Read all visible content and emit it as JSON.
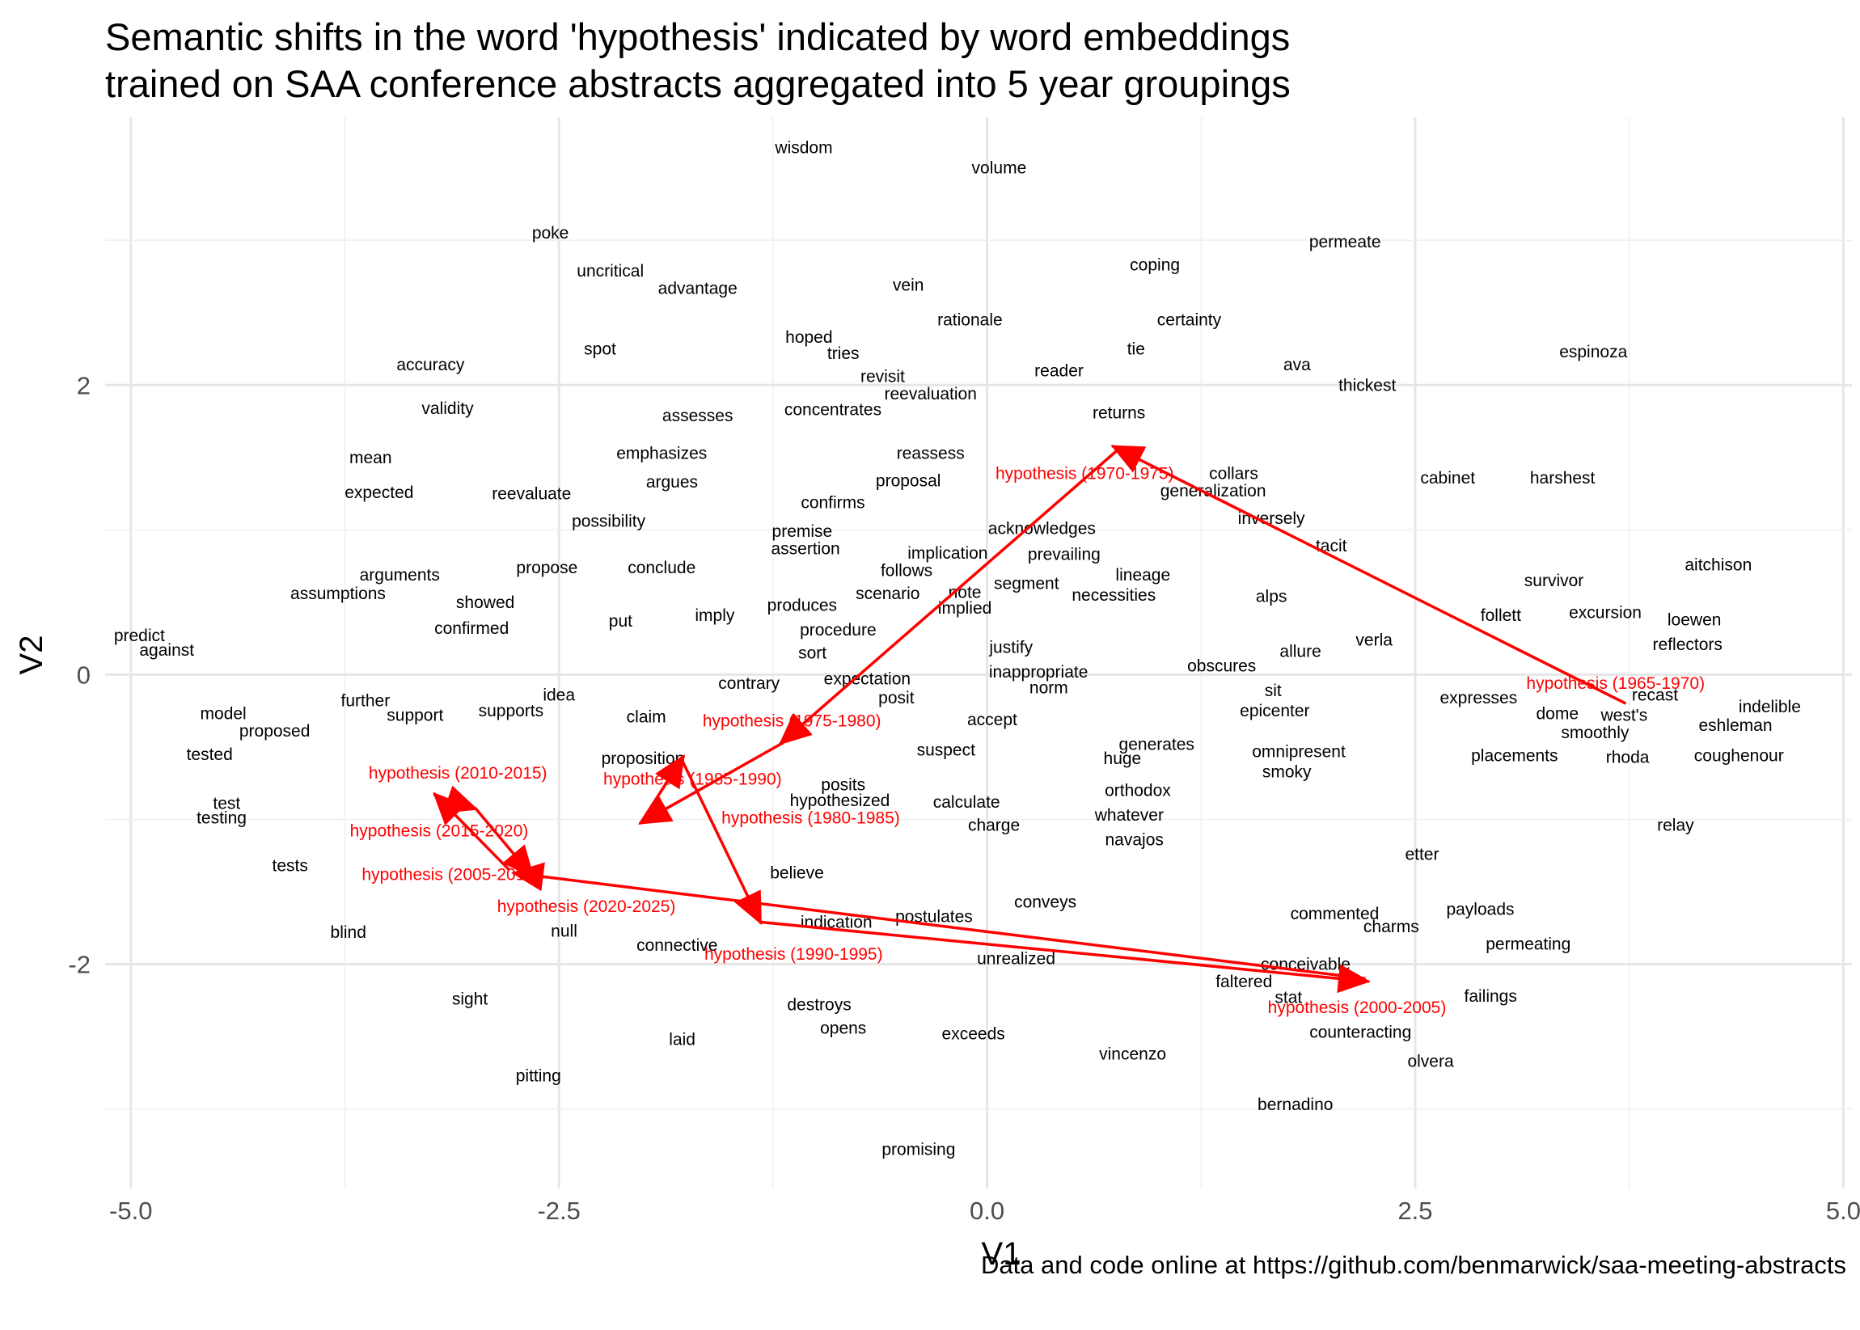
{
  "chart_data": {
    "type": "scatter",
    "title": "Semantic shifts in the word 'hypothesis' indicated by word embeddings\ntrained on SAA conference abstracts aggregated into 5 year groupings",
    "title_lines": [
      "Semantic shifts in the word 'hypothesis' indicated by word embeddings",
      "trained on SAA conference abstracts aggregated into 5 year groupings"
    ],
    "xlabel": "V1",
    "ylabel": "V2",
    "caption": "Data and code online at https://github.com/benmarwick/saa-meeting-abstracts",
    "xlim": [
      -5.15,
      5.05
    ],
    "ylim": [
      -3.55,
      3.85
    ],
    "x_ticks": [
      -5.0,
      -2.5,
      0.0,
      2.5,
      5.0
    ],
    "x_tick_labels": [
      "-5.0",
      "-2.5",
      "0.0",
      "2.5",
      "5.0"
    ],
    "y_ticks": [
      -2,
      0,
      2
    ],
    "y_tick_labels": [
      "-2",
      "0",
      "2"
    ],
    "grid": true,
    "colors": {
      "words": "#000000",
      "hypothesis": "#ff0000",
      "grid": "#e6e6e6"
    },
    "words": [
      {
        "label": "wisdom",
        "x": -1.07,
        "y": 3.64
      },
      {
        "label": "volume",
        "x": 0.07,
        "y": 3.5
      },
      {
        "label": "poke",
        "x": -2.55,
        "y": 3.05
      },
      {
        "label": "permeate",
        "x": 2.09,
        "y": 2.99
      },
      {
        "label": "coping",
        "x": 0.98,
        "y": 2.83
      },
      {
        "label": "uncritical",
        "x": -2.2,
        "y": 2.79
      },
      {
        "label": "advantage",
        "x": -1.69,
        "y": 2.67
      },
      {
        "label": "vein",
        "x": -0.46,
        "y": 2.69
      },
      {
        "label": "certainty",
        "x": 1.18,
        "y": 2.45
      },
      {
        "label": "rationale",
        "x": -0.1,
        "y": 2.45
      },
      {
        "label": "hoped",
        "x": -1.04,
        "y": 2.33
      },
      {
        "label": "tries",
        "x": -0.84,
        "y": 2.22
      },
      {
        "label": "spot",
        "x": -2.26,
        "y": 2.25
      },
      {
        "label": "tie",
        "x": 0.87,
        "y": 2.25
      },
      {
        "label": "espinoza",
        "x": 3.54,
        "y": 2.23
      },
      {
        "label": "ava",
        "x": 1.81,
        "y": 2.14
      },
      {
        "label": "accuracy",
        "x": -3.25,
        "y": 2.14
      },
      {
        "label": "reader",
        "x": 0.42,
        "y": 2.1
      },
      {
        "label": "revisit",
        "x": -0.61,
        "y": 2.06
      },
      {
        "label": "thickest",
        "x": 2.22,
        "y": 2.0
      },
      {
        "label": "reevaluation",
        "x": -0.33,
        "y": 1.94
      },
      {
        "label": "validity",
        "x": -3.15,
        "y": 1.84
      },
      {
        "label": "concentrates",
        "x": -0.9,
        "y": 1.83
      },
      {
        "label": "returns",
        "x": 0.77,
        "y": 1.81
      },
      {
        "label": "assesses",
        "x": -1.69,
        "y": 1.79
      },
      {
        "label": "mean",
        "x": -3.6,
        "y": 1.5
      },
      {
        "label": "emphasizes",
        "x": -1.9,
        "y": 1.53
      },
      {
        "label": "reassess",
        "x": -0.33,
        "y": 1.53
      },
      {
        "label": "collars",
        "x": 1.44,
        "y": 1.39
      },
      {
        "label": "cabinet",
        "x": 2.69,
        "y": 1.36
      },
      {
        "label": "harshest",
        "x": 3.36,
        "y": 1.36
      },
      {
        "label": "argues",
        "x": -1.84,
        "y": 1.33
      },
      {
        "label": "proposal",
        "x": -0.46,
        "y": 1.34
      },
      {
        "label": "generalization",
        "x": 1.32,
        "y": 1.27
      },
      {
        "label": "expected",
        "x": -3.55,
        "y": 1.26
      },
      {
        "label": "reevaluate",
        "x": -2.66,
        "y": 1.25
      },
      {
        "label": "confirms",
        "x": -0.9,
        "y": 1.19
      },
      {
        "label": "possibility",
        "x": -2.21,
        "y": 1.06
      },
      {
        "label": "inversely",
        "x": 1.66,
        "y": 1.08
      },
      {
        "label": "acknowledges",
        "x": 0.32,
        "y": 1.01
      },
      {
        "label": "premise",
        "x": -1.08,
        "y": 0.99
      },
      {
        "label": "assertion",
        "x": -1.06,
        "y": 0.87
      },
      {
        "label": "tacit",
        "x": 2.01,
        "y": 0.89
      },
      {
        "label": "implication",
        "x": -0.23,
        "y": 0.84
      },
      {
        "label": "prevailing",
        "x": 0.45,
        "y": 0.83
      },
      {
        "label": "aitchison",
        "x": 4.27,
        "y": 0.76
      },
      {
        "label": "follows",
        "x": -0.47,
        "y": 0.72
      },
      {
        "label": "conclude",
        "x": -1.9,
        "y": 0.74
      },
      {
        "label": "propose",
        "x": -2.57,
        "y": 0.74
      },
      {
        "label": "arguments",
        "x": -3.43,
        "y": 0.69
      },
      {
        "label": "lineage",
        "x": 0.91,
        "y": 0.69
      },
      {
        "label": "survivor",
        "x": 3.31,
        "y": 0.65
      },
      {
        "label": "segment",
        "x": 0.23,
        "y": 0.63
      },
      {
        "label": "assumptions",
        "x": -3.79,
        "y": 0.56
      },
      {
        "label": "scenario",
        "x": -0.58,
        "y": 0.56
      },
      {
        "label": "note",
        "x": -0.13,
        "y": 0.57
      },
      {
        "label": "necessities",
        "x": 0.74,
        "y": 0.55
      },
      {
        "label": "alps",
        "x": 1.66,
        "y": 0.54
      },
      {
        "label": "showed",
        "x": -2.93,
        "y": 0.5
      },
      {
        "label": "produces",
        "x": -1.08,
        "y": 0.48
      },
      {
        "label": "implied",
        "x": -0.13,
        "y": 0.46
      },
      {
        "label": "excursion",
        "x": 3.61,
        "y": 0.43
      },
      {
        "label": "follett",
        "x": 3.0,
        "y": 0.41
      },
      {
        "label": "loewen",
        "x": 4.13,
        "y": 0.38
      },
      {
        "label": "imply",
        "x": -1.59,
        "y": 0.41
      },
      {
        "label": "put",
        "x": -2.14,
        "y": 0.37
      },
      {
        "label": "confirmed",
        "x": -3.01,
        "y": 0.32
      },
      {
        "label": "procedure",
        "x": -0.87,
        "y": 0.31
      },
      {
        "label": "predict",
        "x": -4.95,
        "y": 0.27
      },
      {
        "label": "verla",
        "x": 2.26,
        "y": 0.24
      },
      {
        "label": "reflectors",
        "x": 4.09,
        "y": 0.21
      },
      {
        "label": "justify",
        "x": 0.14,
        "y": 0.19
      },
      {
        "label": "allure",
        "x": 1.83,
        "y": 0.16
      },
      {
        "label": "against",
        "x": -4.79,
        "y": 0.17
      },
      {
        "label": "sort",
        "x": -1.02,
        "y": 0.15
      },
      {
        "label": "obscures",
        "x": 1.37,
        "y": 0.06
      },
      {
        "label": "inappropriate",
        "x": 0.3,
        "y": 0.02
      },
      {
        "label": "expectation",
        "x": -0.7,
        "y": -0.03
      },
      {
        "label": "contrary",
        "x": -1.39,
        "y": -0.06
      },
      {
        "label": "norm",
        "x": 0.36,
        "y": -0.09
      },
      {
        "label": "sit",
        "x": 1.67,
        "y": -0.11
      },
      {
        "label": "idea",
        "x": -2.5,
        "y": -0.14
      },
      {
        "label": "expresses",
        "x": 2.87,
        "y": -0.16
      },
      {
        "label": "recast",
        "x": 3.9,
        "y": -0.14
      },
      {
        "label": "posit",
        "x": -0.53,
        "y": -0.16
      },
      {
        "label": "further",
        "x": -3.63,
        "y": -0.18
      },
      {
        "label": "indelible",
        "x": 4.57,
        "y": -0.22
      },
      {
        "label": "epicenter",
        "x": 1.68,
        "y": -0.25
      },
      {
        "label": "supports",
        "x": -2.78,
        "y": -0.25
      },
      {
        "label": "dome",
        "x": 3.33,
        "y": -0.27
      },
      {
        "label": "model",
        "x": -4.46,
        "y": -0.27
      },
      {
        "label": "support",
        "x": -3.34,
        "y": -0.28
      },
      {
        "label": "west's",
        "x": 3.72,
        "y": -0.28
      },
      {
        "label": "claim",
        "x": -1.99,
        "y": -0.29
      },
      {
        "label": "accept",
        "x": 0.03,
        "y": -0.31
      },
      {
        "label": "eshleman",
        "x": 4.37,
        "y": -0.35
      },
      {
        "label": "proposed",
        "x": -4.16,
        "y": -0.39
      },
      {
        "label": "smoothly",
        "x": 3.55,
        "y": -0.4
      },
      {
        "label": "generates",
        "x": 0.99,
        "y": -0.48
      },
      {
        "label": "suspect",
        "x": -0.24,
        "y": -0.52
      },
      {
        "label": "omnipresent",
        "x": 1.82,
        "y": -0.53
      },
      {
        "label": "tested",
        "x": -4.54,
        "y": -0.55
      },
      {
        "label": "placements",
        "x": 3.08,
        "y": -0.56
      },
      {
        "label": "coughenour",
        "x": 4.39,
        "y": -0.56
      },
      {
        "label": "rhoda",
        "x": 3.74,
        "y": -0.57
      },
      {
        "label": "proposition",
        "x": -2.01,
        "y": -0.58
      },
      {
        "label": "huge",
        "x": 0.79,
        "y": -0.58
      },
      {
        "label": "smoky",
        "x": 1.75,
        "y": -0.67
      },
      {
        "label": "posits",
        "x": -0.84,
        "y": -0.76
      },
      {
        "label": "orthodox",
        "x": 0.88,
        "y": -0.8
      },
      {
        "label": "test",
        "x": -4.44,
        "y": -0.89
      },
      {
        "label": "hypothesized",
        "x": -0.86,
        "y": -0.87
      },
      {
        "label": "calculate",
        "x": -0.12,
        "y": -0.88
      },
      {
        "label": "testing",
        "x": -4.47,
        "y": -0.99
      },
      {
        "label": "whatever",
        "x": 0.83,
        "y": -0.97
      },
      {
        "label": "charge",
        "x": 0.04,
        "y": -1.04
      },
      {
        "label": "relay",
        "x": 4.02,
        "y": -1.04
      },
      {
        "label": "navajos",
        "x": 0.86,
        "y": -1.14
      },
      {
        "label": "etter",
        "x": 2.54,
        "y": -1.24
      },
      {
        "label": "tests",
        "x": -4.07,
        "y": -1.32
      },
      {
        "label": "believe",
        "x": -1.11,
        "y": -1.37
      },
      {
        "label": "payloads",
        "x": 2.88,
        "y": -1.62
      },
      {
        "label": "conveys",
        "x": 0.34,
        "y": -1.57
      },
      {
        "label": "commented",
        "x": 2.03,
        "y": -1.65
      },
      {
        "label": "postulates",
        "x": -0.31,
        "y": -1.67
      },
      {
        "label": "indication",
        "x": -0.88,
        "y": -1.71
      },
      {
        "label": "charms",
        "x": 2.36,
        "y": -1.74
      },
      {
        "label": "blind",
        "x": -3.73,
        "y": -1.78
      },
      {
        "label": "null",
        "x": -2.47,
        "y": -1.77
      },
      {
        "label": "permeating",
        "x": 3.16,
        "y": -1.86
      },
      {
        "label": "connective",
        "x": -1.81,
        "y": -1.87
      },
      {
        "label": "unrealized",
        "x": 0.17,
        "y": -1.96
      },
      {
        "label": "conceivable",
        "x": 1.86,
        "y": -2.0
      },
      {
        "label": "faltered",
        "x": 1.5,
        "y": -2.12
      },
      {
        "label": "failings",
        "x": 2.94,
        "y": -2.22
      },
      {
        "label": "stat",
        "x": 1.76,
        "y": -2.23
      },
      {
        "label": "sight",
        "x": -3.02,
        "y": -2.24
      },
      {
        "label": "destroys",
        "x": -0.98,
        "y": -2.28
      },
      {
        "label": "opens",
        "x": -0.84,
        "y": -2.44
      },
      {
        "label": "counteracting",
        "x": 2.18,
        "y": -2.47
      },
      {
        "label": "exceeds",
        "x": -0.08,
        "y": -2.48
      },
      {
        "label": "laid",
        "x": -1.78,
        "y": -2.52
      },
      {
        "label": "vincenzo",
        "x": 0.85,
        "y": -2.62
      },
      {
        "label": "olvera",
        "x": 2.59,
        "y": -2.67
      },
      {
        "label": "pitting",
        "x": -2.62,
        "y": -2.77
      },
      {
        "label": "bernadino",
        "x": 1.8,
        "y": -2.97
      },
      {
        "label": "promising",
        "x": -0.4,
        "y": -3.28
      }
    ],
    "hypothesis_points": [
      {
        "label": "hypothesis (1965-1970)",
        "x": 3.67,
        "y": -0.06
      },
      {
        "label": "hypothesis (1970-1975)",
        "x": 0.57,
        "y": 1.39
      },
      {
        "label": "hypothesis (1975-1980)",
        "x": -1.14,
        "y": -0.32
      },
      {
        "label": "hypothesis (1980-1985)",
        "x": -1.03,
        "y": -0.99
      },
      {
        "label": "hypothesis (1985-1990)",
        "x": -1.72,
        "y": -0.72
      },
      {
        "label": "hypothesis (1990-1995)",
        "x": -1.13,
        "y": -1.93
      },
      {
        "label": "hypothesis (2000-2005)",
        "x": 2.16,
        "y": -2.3
      },
      {
        "label": "hypothesis (2005-2010)",
        "x": -3.13,
        "y": -1.38
      },
      {
        "label": "hypothesis (2010-2015)",
        "x": -3.09,
        "y": -0.68
      },
      {
        "label": "hypothesis (2015-2020)",
        "x": -3.2,
        "y": -1.08
      },
      {
        "label": "hypothesis (2020-2025)",
        "x": -2.34,
        "y": -1.6
      }
    ],
    "arrows": [
      {
        "from": [
          3.73,
          -0.2
        ],
        "to": [
          0.73,
          1.58
        ]
      },
      {
        "from": [
          0.78,
          1.57
        ],
        "to": [
          -1.21,
          -0.48
        ]
      },
      {
        "from": [
          -1.19,
          -0.47
        ],
        "to": [
          -2.03,
          -1.03
        ]
      },
      {
        "from": [
          -2.02,
          -1.02
        ],
        "to": [
          -1.77,
          -0.56
        ]
      },
      {
        "from": [
          -1.79,
          -0.57
        ],
        "to": [
          -1.32,
          -1.72
        ]
      },
      {
        "from": [
          -1.32,
          -1.71
        ],
        "to": [
          2.23,
          -2.12
        ]
      },
      {
        "from": [
          2.21,
          -2.1
        ],
        "to": [
          -2.77,
          -1.37
        ]
      },
      {
        "from": [
          -2.79,
          -1.35
        ],
        "to": [
          -3.23,
          -0.82
        ]
      },
      {
        "from": [
          -3.23,
          -0.83
        ],
        "to": [
          -2.98,
          -0.93
        ]
      },
      {
        "from": [
          -2.99,
          -0.92
        ],
        "to": [
          -2.65,
          -1.4
        ]
      }
    ]
  }
}
